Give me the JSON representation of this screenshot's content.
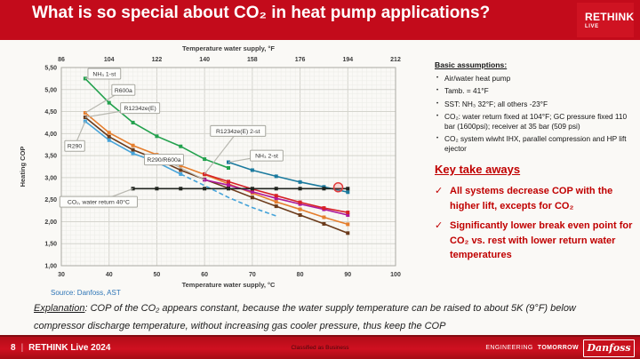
{
  "header": {
    "title": "What is so special about CO₂ in heat pump applications?",
    "logo": {
      "line1": "RETHINK",
      "line2": "LIVE"
    }
  },
  "colors": {
    "header_red": "#c30b1b",
    "takeaway_red": "#c00000",
    "source_blue": "#2e75b6",
    "highlight_ring": "#e23b3b"
  },
  "chart_data": {
    "type": "line",
    "xlabel_top": "Temperature water supply, °F",
    "xlabel": "Temperature water supply, °C",
    "ylabel": "Heating COP",
    "xlim": [
      30,
      100
    ],
    "ylim": [
      1.0,
      5.5
    ],
    "grid": {
      "x_minor_step": 1,
      "x_major_step": 10,
      "y_minor_step": 0.1,
      "y_major_step": 0.5
    },
    "top_ticks": [
      "86",
      "104",
      "122",
      "140",
      "158",
      "176",
      "194",
      "212"
    ],
    "bottom_ticks": [
      "30",
      "40",
      "50",
      "60",
      "70",
      "80",
      "90",
      "100"
    ],
    "y_tick_labels": [
      "5,50",
      "5,00",
      "4,50",
      "4,00",
      "3,50",
      "3,00",
      "2,50",
      "2,00",
      "1,50",
      "1,00"
    ],
    "y_tick_values": [
      5.5,
      5.0,
      4.5,
      4.0,
      3.5,
      3.0,
      2.5,
      2.0,
      1.5,
      1.0
    ],
    "series": [
      {
        "name": "NH₃ 1-st",
        "color": "#22a14d",
        "x": [
          35,
          40,
          45,
          50,
          55,
          60,
          65
        ],
        "y": [
          5.25,
          4.7,
          4.25,
          3.94,
          3.71,
          3.42,
          3.22
        ]
      },
      {
        "name": "R600a",
        "color": "#e57e2d",
        "x": [
          35,
          40,
          45,
          50,
          55,
          60,
          65,
          70,
          75,
          80,
          85,
          90
        ],
        "y": [
          4.47,
          4.02,
          3.73,
          3.52,
          3.27,
          3.07,
          2.86,
          2.65,
          2.45,
          2.28,
          2.1,
          1.94
        ]
      },
      {
        "name": "R1234ze(E)",
        "color": "#6b3a1a",
        "x": [
          35,
          40,
          45,
          50,
          55,
          60,
          65,
          70,
          75,
          80,
          85,
          90
        ],
        "y": [
          4.37,
          3.93,
          3.63,
          3.42,
          3.17,
          2.96,
          2.76,
          2.55,
          2.35,
          2.15,
          1.95,
          1.74
        ]
      },
      {
        "name": "R290",
        "color": "#45a3d9",
        "x": [
          35,
          40,
          45,
          50,
          55
        ],
        "y": [
          4.28,
          3.85,
          3.55,
          3.35,
          3.08
        ]
      },
      {
        "name": "R290 extrapolated",
        "color": "#45a3d9",
        "dash": true,
        "markers": false,
        "x": [
          55,
          60,
          65,
          70,
          75
        ],
        "y": [
          3.08,
          2.82,
          2.55,
          2.32,
          2.13
        ]
      },
      {
        "name": "R290/R600a",
        "color": "#ad189b",
        "x": [
          60,
          65,
          70,
          75,
          80,
          85,
          90
        ],
        "y": [
          2.95,
          2.83,
          2.68,
          2.53,
          2.4,
          2.28,
          2.15
        ]
      },
      {
        "name": "R1234ze(E) 2-st",
        "color": "#d62128",
        "x": [
          60,
          65,
          70,
          75,
          80,
          85,
          90
        ],
        "y": [
          3.08,
          2.91,
          2.74,
          2.59,
          2.44,
          2.31,
          2.21
        ]
      },
      {
        "name": "NH₃ 2-st",
        "color": "#1b7a9e",
        "x": [
          65,
          70,
          75,
          80,
          85,
          90
        ],
        "y": [
          3.35,
          3.17,
          3.03,
          2.9,
          2.79,
          2.67
        ]
      },
      {
        "name": "CO₂, water return 40°C",
        "color": "#20241f",
        "x": [
          45,
          50,
          55,
          60,
          65,
          70,
          75,
          80,
          85,
          90
        ],
        "y": [
          2.75,
          2.75,
          2.75,
          2.75,
          2.75,
          2.75,
          2.75,
          2.75,
          2.75,
          2.75
        ]
      }
    ],
    "labels": [
      {
        "text": "NH₃ 1-st",
        "cx": 39.0,
        "cy": 5.36,
        "tx": 35,
        "ty": 5.25
      },
      {
        "text": "R600a",
        "cx": 43.0,
        "cy": 4.99,
        "tx": 35,
        "ty": 4.47
      },
      {
        "text": "R1234ze(E)",
        "cx": 46.5,
        "cy": 4.58,
        "tx": 35,
        "ty": 4.37
      },
      {
        "text": "R290",
        "cx": 32.8,
        "cy": 3.72,
        "tx": 35,
        "ty": 4.28
      },
      {
        "text": "R290/R600a",
        "cx": 51.5,
        "cy": 3.41,
        "tx": 60,
        "ty": 2.95
      },
      {
        "text": "R1234ze(E) 2-st",
        "cx": 67.0,
        "cy": 4.06,
        "tx": 60,
        "ty": 3.08
      },
      {
        "text": "NH₃ 2-st",
        "cx": 73.0,
        "cy": 3.5,
        "tx": 65,
        "ty": 3.35
      },
      {
        "text": "CO₂, water return 40°C",
        "cx": 37.8,
        "cy": 2.45,
        "tx": 45,
        "ty": 2.75
      }
    ],
    "highlight_point": {
      "x": 88,
      "y": 2.78
    }
  },
  "chart_source": "Source: Danfoss, AST",
  "assumptions": {
    "heading": "Basic assumptions:",
    "marker": "•",
    "items": [
      "Air/water heat pump",
      "Tamb. = 41°F",
      "SST: NH₃ 32°F; all others -23°F",
      "CO₂: water return fixed at 104°F; GC pressure fixed 110 bar (1600psi); receiver at 35 bar (509 psi)",
      "CO₂ system wiwht IHX, parallel compression and HP lift ejector"
    ]
  },
  "takeaways": {
    "heading": "Key take aways",
    "marker": "✓",
    "items": [
      "All systems decrease COP with the higher lift, excepts for CO₂",
      "Significantly lower break even point for CO₂ vs. rest with lower return water temperatures"
    ]
  },
  "explanation": {
    "label": "Explanation",
    "text": ": COP of the CO₂ appears constant, because the water supply temperature can be raised to about 5K (9°F) below compressor discharge temperature, without increasing gas cooler pressure, thus keep the COP"
  },
  "footer": {
    "page_number": "8",
    "separator": "|",
    "event": "RETHINK Live 2024",
    "classification": "Classified as Business",
    "tagline_regular": "ENGINEERING",
    "tagline_bold": "TOMORROW",
    "brand": "Danfoss"
  }
}
